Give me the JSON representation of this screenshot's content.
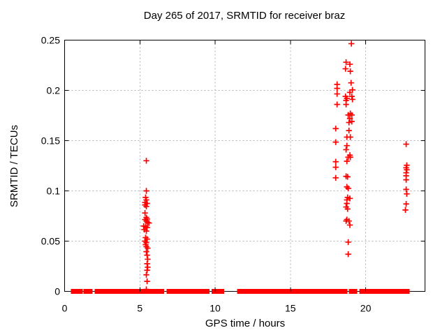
{
  "chart_data": {
    "type": "scatter",
    "title": "Day 265 of 2017, SRMTID for receiver braz",
    "xlabel": "GPS time / hours",
    "ylabel": "SRMTID / TECUs",
    "xlim": [
      0,
      23.94
    ],
    "ylim": [
      0,
      0.25
    ],
    "x_ticks": [
      0,
      5,
      10,
      15,
      20
    ],
    "x_tick_labels": [
      "0",
      "5",
      "10",
      "15",
      "20"
    ],
    "y_ticks": [
      0,
      0.05,
      0.1,
      0.15,
      0.2,
      0.25
    ],
    "y_tick_labels": [
      "0",
      "0.05",
      "0.1",
      "0.15",
      "0.2",
      "0.25"
    ],
    "grid": true,
    "legend": "none",
    "marker": "plus",
    "series": [
      {
        "name": "srmtid-points",
        "points": [
          [
            5.43,
            0.13
          ],
          [
            5.43,
            0.1
          ],
          [
            5.38,
            0.0935
          ],
          [
            5.43,
            0.091
          ],
          [
            5.34,
            0.0885
          ],
          [
            5.48,
            0.0875
          ],
          [
            5.34,
            0.086
          ],
          [
            5.43,
            0.0845
          ],
          [
            5.34,
            0.078
          ],
          [
            5.43,
            0.0735
          ],
          [
            5.48,
            0.072
          ],
          [
            5.34,
            0.0715
          ],
          [
            5.43,
            0.07
          ],
          [
            5.52,
            0.0685
          ],
          [
            5.61,
            0.068
          ],
          [
            5.25,
            0.065
          ],
          [
            5.38,
            0.0645
          ],
          [
            5.48,
            0.0635
          ],
          [
            5.29,
            0.0615
          ],
          [
            5.43,
            0.06
          ],
          [
            5.38,
            0.0535
          ],
          [
            5.48,
            0.052
          ],
          [
            5.34,
            0.05
          ],
          [
            5.43,
            0.0485
          ],
          [
            5.38,
            0.0465
          ],
          [
            5.43,
            0.0445
          ],
          [
            5.52,
            0.043
          ],
          [
            5.43,
            0.0395
          ],
          [
            5.48,
            0.036
          ],
          [
            5.52,
            0.032
          ],
          [
            5.48,
            0.0275
          ],
          [
            5.52,
            0.024
          ],
          [
            5.48,
            0.021
          ],
          [
            5.43,
            0.0165
          ],
          [
            5.48,
            0.01
          ],
          [
            5.43,
            0.002
          ],
          [
            19.05,
            0.2465
          ],
          [
            18.7,
            0.228
          ],
          [
            18.95,
            0.226
          ],
          [
            18.66,
            0.2215
          ],
          [
            18.98,
            0.219
          ],
          [
            19.03,
            0.2075
          ],
          [
            18.1,
            0.206
          ],
          [
            18.1,
            0.202
          ],
          [
            19.12,
            0.2005
          ],
          [
            18.95,
            0.198
          ],
          [
            18.1,
            0.1965
          ],
          [
            19.08,
            0.194
          ],
          [
            18.66,
            0.194
          ],
          [
            18.75,
            0.192
          ],
          [
            19.12,
            0.191
          ],
          [
            18.7,
            0.19
          ],
          [
            18.1,
            0.186
          ],
          [
            18.7,
            0.186
          ],
          [
            18.98,
            0.177
          ],
          [
            19.08,
            0.1755
          ],
          [
            18.84,
            0.1755
          ],
          [
            18.95,
            0.172
          ],
          [
            19.08,
            0.169
          ],
          [
            18.89,
            0.168
          ],
          [
            18.01,
            0.162
          ],
          [
            18.89,
            0.16
          ],
          [
            18.98,
            0.1535
          ],
          [
            18.75,
            0.1535
          ],
          [
            18.01,
            0.1485
          ],
          [
            18.75,
            0.145
          ],
          [
            18.7,
            0.141
          ],
          [
            18.95,
            0.1355
          ],
          [
            18.84,
            0.1335
          ],
          [
            18.98,
            0.1335
          ],
          [
            18.75,
            0.1295
          ],
          [
            18.01,
            0.129
          ],
          [
            18.01,
            0.1235
          ],
          [
            18.7,
            0.1145
          ],
          [
            18.8,
            0.114
          ],
          [
            18.01,
            0.113
          ],
          [
            18.75,
            0.104
          ],
          [
            18.84,
            0.1025
          ],
          [
            18.8,
            0.0935
          ],
          [
            18.95,
            0.0925
          ],
          [
            18.75,
            0.091
          ],
          [
            18.75,
            0.0875
          ],
          [
            18.7,
            0.084
          ],
          [
            18.8,
            0.082
          ],
          [
            18.75,
            0.0715
          ],
          [
            18.89,
            0.07
          ],
          [
            18.7,
            0.07
          ],
          [
            18.95,
            0.066
          ],
          [
            18.84,
            0.049
          ],
          [
            18.84,
            0.037
          ],
          [
            22.69,
            0.1465
          ],
          [
            22.73,
            0.1255
          ],
          [
            22.69,
            0.123
          ],
          [
            22.73,
            0.121
          ],
          [
            22.69,
            0.118
          ],
          [
            22.69,
            0.115
          ],
          [
            22.69,
            0.111
          ],
          [
            22.69,
            0.1015
          ],
          [
            22.73,
            0.097
          ],
          [
            22.69,
            0.087
          ],
          [
            22.64,
            0.081
          ]
        ]
      }
    ],
    "zero_band_segments_hours": [
      [
        0.6,
        1.02
      ],
      [
        1.44,
        1.67
      ],
      [
        2.18,
        2.64
      ],
      [
        2.87,
        3.01
      ],
      [
        3.1,
        3.19
      ],
      [
        3.29,
        3.38
      ],
      [
        3.43,
        3.52
      ],
      [
        3.66,
        4.26
      ],
      [
        4.3,
        4.44
      ],
      [
        4.49,
        4.58
      ],
      [
        4.72,
        4.77
      ],
      [
        4.95,
        5.09
      ],
      [
        5.18,
        5.42
      ],
      [
        5.55,
        5.69
      ],
      [
        5.79,
        5.88
      ],
      [
        6.0,
        6.16
      ],
      [
        6.25,
        6.43
      ],
      [
        6.95,
        8.75
      ],
      [
        8.85,
        9.2
      ],
      [
        9.36,
        9.44
      ],
      [
        9.95,
        10.05
      ],
      [
        10.18,
        10.42
      ],
      [
        11.65,
        11.8
      ],
      [
        11.9,
        12.2
      ],
      [
        12.3,
        12.4
      ],
      [
        12.5,
        12.6
      ],
      [
        12.7,
        12.85
      ],
      [
        13.0,
        13.1
      ],
      [
        13.2,
        13.28
      ],
      [
        13.42,
        13.5
      ],
      [
        13.65,
        14.1
      ],
      [
        14.15,
        14.45
      ],
      [
        14.52,
        14.62
      ],
      [
        14.7,
        14.82
      ],
      [
        14.9,
        16.3
      ],
      [
        16.4,
        16.6
      ],
      [
        16.68,
        16.9
      ],
      [
        17.0,
        17.45
      ],
      [
        17.68,
        17.8
      ],
      [
        17.88,
        18.06
      ],
      [
        18.15,
        18.6
      ],
      [
        19.07,
        19.26
      ],
      [
        19.77,
        20.04
      ],
      [
        20.08,
        20.35
      ],
      [
        20.7,
        21.55
      ],
      [
        21.7,
        22.74
      ]
    ]
  },
  "colors": {
    "marker": "#ff0000",
    "grid": "#b0b0b0",
    "border": "#000000",
    "background": "#ffffff",
    "text": "#000000"
  }
}
